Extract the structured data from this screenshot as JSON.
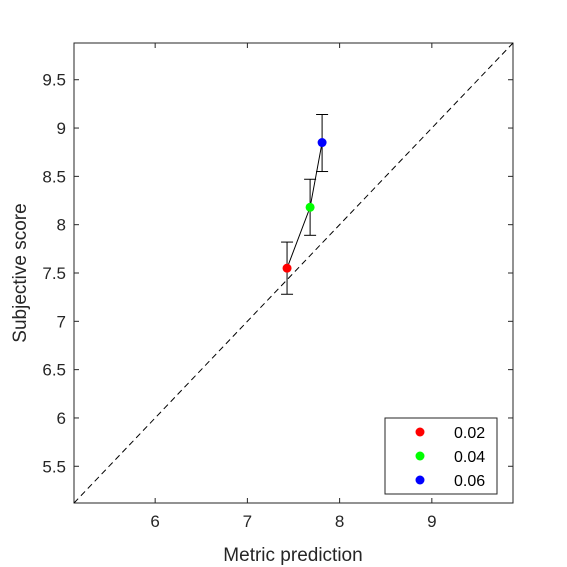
{
  "chart_data": {
    "type": "scatter",
    "xlabel": "Metric prediction",
    "ylabel": "Subjective score",
    "xlim": [
      5.12,
      9.88
    ],
    "ylim": [
      5.12,
      9.88
    ],
    "xticks": [
      6,
      7,
      8,
      9
    ],
    "yticks": [
      5.5,
      6,
      6.5,
      7,
      7.5,
      8,
      8.5,
      9,
      9.5
    ],
    "xtick_labels": [
      "6",
      "7",
      "8",
      "9"
    ],
    "ytick_labels": [
      "5.5",
      "6",
      "6.5",
      "7",
      "7.5",
      "8",
      "8.5",
      "9",
      "9.5"
    ],
    "grid": false,
    "legend_position": "bottom-right",
    "reference_line": {
      "style": "dashed",
      "description": "identity y = x"
    },
    "connect_points": true,
    "series": [
      {
        "name": "0.02",
        "color": "#ff0000",
        "x": 7.43,
        "y": 7.55,
        "err_low": 7.28,
        "err_high": 7.82
      },
      {
        "name": "0.04",
        "color": "#00ff00",
        "x": 7.68,
        "y": 8.18,
        "err_low": 7.89,
        "err_high": 8.47
      },
      {
        "name": "0.06",
        "color": "#0000ff",
        "x": 7.81,
        "y": 8.85,
        "err_low": 8.55,
        "err_high": 9.14
      }
    ]
  }
}
